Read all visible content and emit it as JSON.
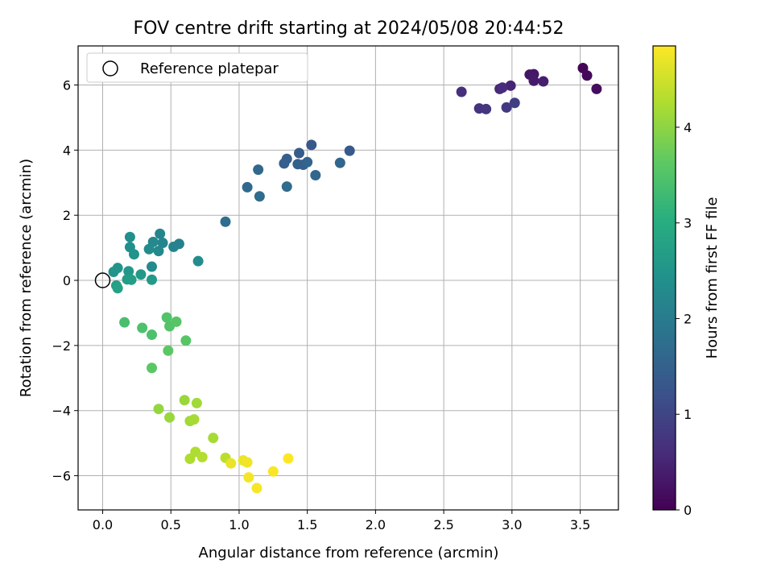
{
  "chart_data": {
    "type": "scatter",
    "title": "FOV centre drift starting at 2024/05/08 20:44:52",
    "xlabel": "Angular distance from reference (arcmin)",
    "ylabel": "Rotation from reference (arcmin)",
    "xlim": [
      -0.18,
      3.78
    ],
    "ylim": [
      -7.05,
      7.2
    ],
    "xticks": [
      0.0,
      0.5,
      1.0,
      1.5,
      2.0,
      2.5,
      3.0,
      3.5
    ],
    "xtick_labels": [
      "0.0",
      "0.5",
      "1.0",
      "1.5",
      "2.0",
      "2.5",
      "3.0",
      "3.5"
    ],
    "yticks": [
      -6,
      -4,
      -2,
      0,
      2,
      4,
      6
    ],
    "ytick_labels": [
      "−6",
      "−4",
      "−2",
      "0",
      "2",
      "4",
      "6"
    ],
    "grid": true,
    "legend": {
      "placement": "top-left",
      "entries": [
        {
          "label": "Reference platepar",
          "marker": "open-circle"
        }
      ]
    },
    "reference_point": {
      "x": 0.0,
      "y": 0.0
    },
    "colorbar": {
      "label": "Hours from first FF file",
      "colormap": "viridis",
      "range": [
        0,
        4.85
      ],
      "ticks": [
        0,
        1,
        2,
        3,
        4
      ],
      "tick_labels": [
        "0",
        "1",
        "2",
        "3",
        "4"
      ]
    },
    "series": [
      {
        "x": [
          3.52,
          3.55,
          3.62,
          3.13,
          3.16,
          3.16,
          3.23,
          2.99,
          2.91,
          2.93,
          2.63,
          2.76,
          2.81,
          2.96,
          3.02,
          1.53,
          1.81,
          1.44,
          1.35,
          1.33,
          1.43,
          1.47,
          1.5,
          1.56,
          1.74,
          1.14,
          1.06,
          1.15,
          1.35,
          0.9,
          0.56,
          0.52,
          0.42,
          0.44,
          0.41,
          0.37,
          0.34,
          0.36,
          0.7,
          0.2,
          0.2,
          0.23,
          0.11,
          0.08,
          0.19,
          0.28,
          0.36,
          0.18,
          0.21,
          0.1,
          0.11,
          0.16,
          0.29,
          0.36,
          0.47,
          0.49,
          0.54,
          0.61,
          0.48,
          0.36,
          0.41,
          0.49,
          0.6,
          0.69,
          0.64,
          0.67,
          0.81,
          0.68,
          0.64,
          0.73,
          0.9,
          0.94,
          1.03,
          1.06,
          1.07,
          1.13,
          1.25,
          1.36
        ],
        "y": [
          6.52,
          6.29,
          5.88,
          6.32,
          6.33,
          6.13,
          6.11,
          5.98,
          5.88,
          5.92,
          5.79,
          5.28,
          5.26,
          5.31,
          5.45,
          4.16,
          3.98,
          3.91,
          3.73,
          3.59,
          3.57,
          3.55,
          3.63,
          3.23,
          3.61,
          3.4,
          2.86,
          2.58,
          2.88,
          1.8,
          1.12,
          1.03,
          1.43,
          1.15,
          0.9,
          1.18,
          0.96,
          0.42,
          0.59,
          1.33,
          1.02,
          0.8,
          0.38,
          0.26,
          0.28,
          0.18,
          0.02,
          0.03,
          0.02,
          -0.16,
          -0.24,
          -1.29,
          -1.46,
          -1.67,
          -1.14,
          -1.41,
          -1.27,
          -1.85,
          -2.16,
          -2.69,
          -3.95,
          -4.21,
          -3.68,
          -3.77,
          -4.32,
          -4.27,
          -4.84,
          -5.27,
          -5.48,
          -5.43,
          -5.45,
          -5.62,
          -5.53,
          -5.59,
          -6.05,
          -6.38,
          -5.87,
          -5.47
        ],
        "hours": [
          0.05,
          0.1,
          0.15,
          0.25,
          0.3,
          0.35,
          0.4,
          0.5,
          0.55,
          0.6,
          0.65,
          0.7,
          0.75,
          0.8,
          0.9,
          1.3,
          1.35,
          1.4,
          1.45,
          1.45,
          1.5,
          1.5,
          1.55,
          1.6,
          1.6,
          1.65,
          1.65,
          1.7,
          1.7,
          1.75,
          2.1,
          2.15,
          2.2,
          2.2,
          2.25,
          2.25,
          2.3,
          2.3,
          2.35,
          2.4,
          2.4,
          2.45,
          2.5,
          2.5,
          2.55,
          2.6,
          2.6,
          2.65,
          2.7,
          2.7,
          2.75,
          3.4,
          3.45,
          3.45,
          3.5,
          3.5,
          3.55,
          3.55,
          3.6,
          3.6,
          4.05,
          4.1,
          4.1,
          4.15,
          4.15,
          4.2,
          4.2,
          4.25,
          4.25,
          4.3,
          4.35,
          4.7,
          4.72,
          4.75,
          4.78,
          4.8,
          4.82,
          4.85
        ]
      }
    ]
  }
}
